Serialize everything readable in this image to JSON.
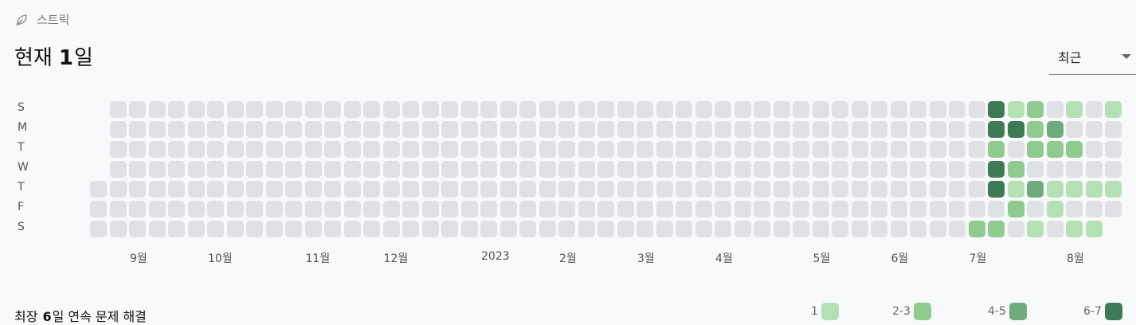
{
  "header": {
    "section_label": "스트릭",
    "title_prefix": "현재",
    "title_count": "1",
    "title_unit": "일",
    "leaf_icon": "leaf-icon"
  },
  "range_select": {
    "selected": "최근"
  },
  "weekday_labels": [
    "S",
    "M",
    "T",
    "W",
    "T",
    "F",
    "S"
  ],
  "heatmap": {
    "columns": 53,
    "first_column_days": [
      4,
      5,
      6
    ],
    "last_column_days": [
      0,
      1,
      2,
      3,
      4,
      5
    ],
    "active_cells": [
      {
        "col": 45,
        "day": 6,
        "level": 2
      },
      {
        "col": 46,
        "day": 0,
        "level": 4
      },
      {
        "col": 46,
        "day": 1,
        "level": 4
      },
      {
        "col": 46,
        "day": 2,
        "level": 2
      },
      {
        "col": 46,
        "day": 3,
        "level": 4
      },
      {
        "col": 46,
        "day": 4,
        "level": 4
      },
      {
        "col": 46,
        "day": 6,
        "level": 2
      },
      {
        "col": 47,
        "day": 0,
        "level": 1
      },
      {
        "col": 47,
        "day": 1,
        "level": 4
      },
      {
        "col": 47,
        "day": 3,
        "level": 2
      },
      {
        "col": 47,
        "day": 4,
        "level": 1
      },
      {
        "col": 47,
        "day": 5,
        "level": 2
      },
      {
        "col": 48,
        "day": 0,
        "level": 2
      },
      {
        "col": 48,
        "day": 1,
        "level": 2
      },
      {
        "col": 48,
        "day": 2,
        "level": 2
      },
      {
        "col": 48,
        "day": 4,
        "level": 3
      },
      {
        "col": 48,
        "day": 6,
        "level": 1
      },
      {
        "col": 49,
        "day": 1,
        "level": 3
      },
      {
        "col": 49,
        "day": 2,
        "level": 2
      },
      {
        "col": 49,
        "day": 4,
        "level": 1
      },
      {
        "col": 49,
        "day": 5,
        "level": 1
      },
      {
        "col": 50,
        "day": 0,
        "level": 1
      },
      {
        "col": 50,
        "day": 2,
        "level": 2
      },
      {
        "col": 50,
        "day": 4,
        "level": 1
      },
      {
        "col": 50,
        "day": 6,
        "level": 1
      },
      {
        "col": 51,
        "day": 4,
        "level": 1
      },
      {
        "col": 51,
        "day": 6,
        "level": 1
      },
      {
        "col": 52,
        "day": 0,
        "level": 1
      },
      {
        "col": 52,
        "day": 4,
        "level": 1
      }
    ]
  },
  "month_labels": [
    {
      "label": "9월",
      "col": 2
    },
    {
      "label": "10월",
      "col": 6
    },
    {
      "label": "11월",
      "col": 11
    },
    {
      "label": "12월",
      "col": 15
    },
    {
      "label": "2023",
      "col": 20
    },
    {
      "label": "2월",
      "col": 24
    },
    {
      "label": "3월",
      "col": 28
    },
    {
      "label": "4월",
      "col": 32
    },
    {
      "label": "5월",
      "col": 37
    },
    {
      "label": "6월",
      "col": 41
    },
    {
      "label": "7월",
      "col": 45
    },
    {
      "label": "8월",
      "col": 50
    }
  ],
  "footer": {
    "prefix": "최장",
    "count": "6",
    "suffix": "일 연속 문제 해결"
  },
  "legend": [
    {
      "label": "1",
      "color": "#b4e1b4"
    },
    {
      "label": "2-3",
      "color": "#8fca8f"
    },
    {
      "label": "4-5",
      "color": "#6fab7d"
    },
    {
      "label": "6-7",
      "color": "#3d7a55"
    }
  ]
}
